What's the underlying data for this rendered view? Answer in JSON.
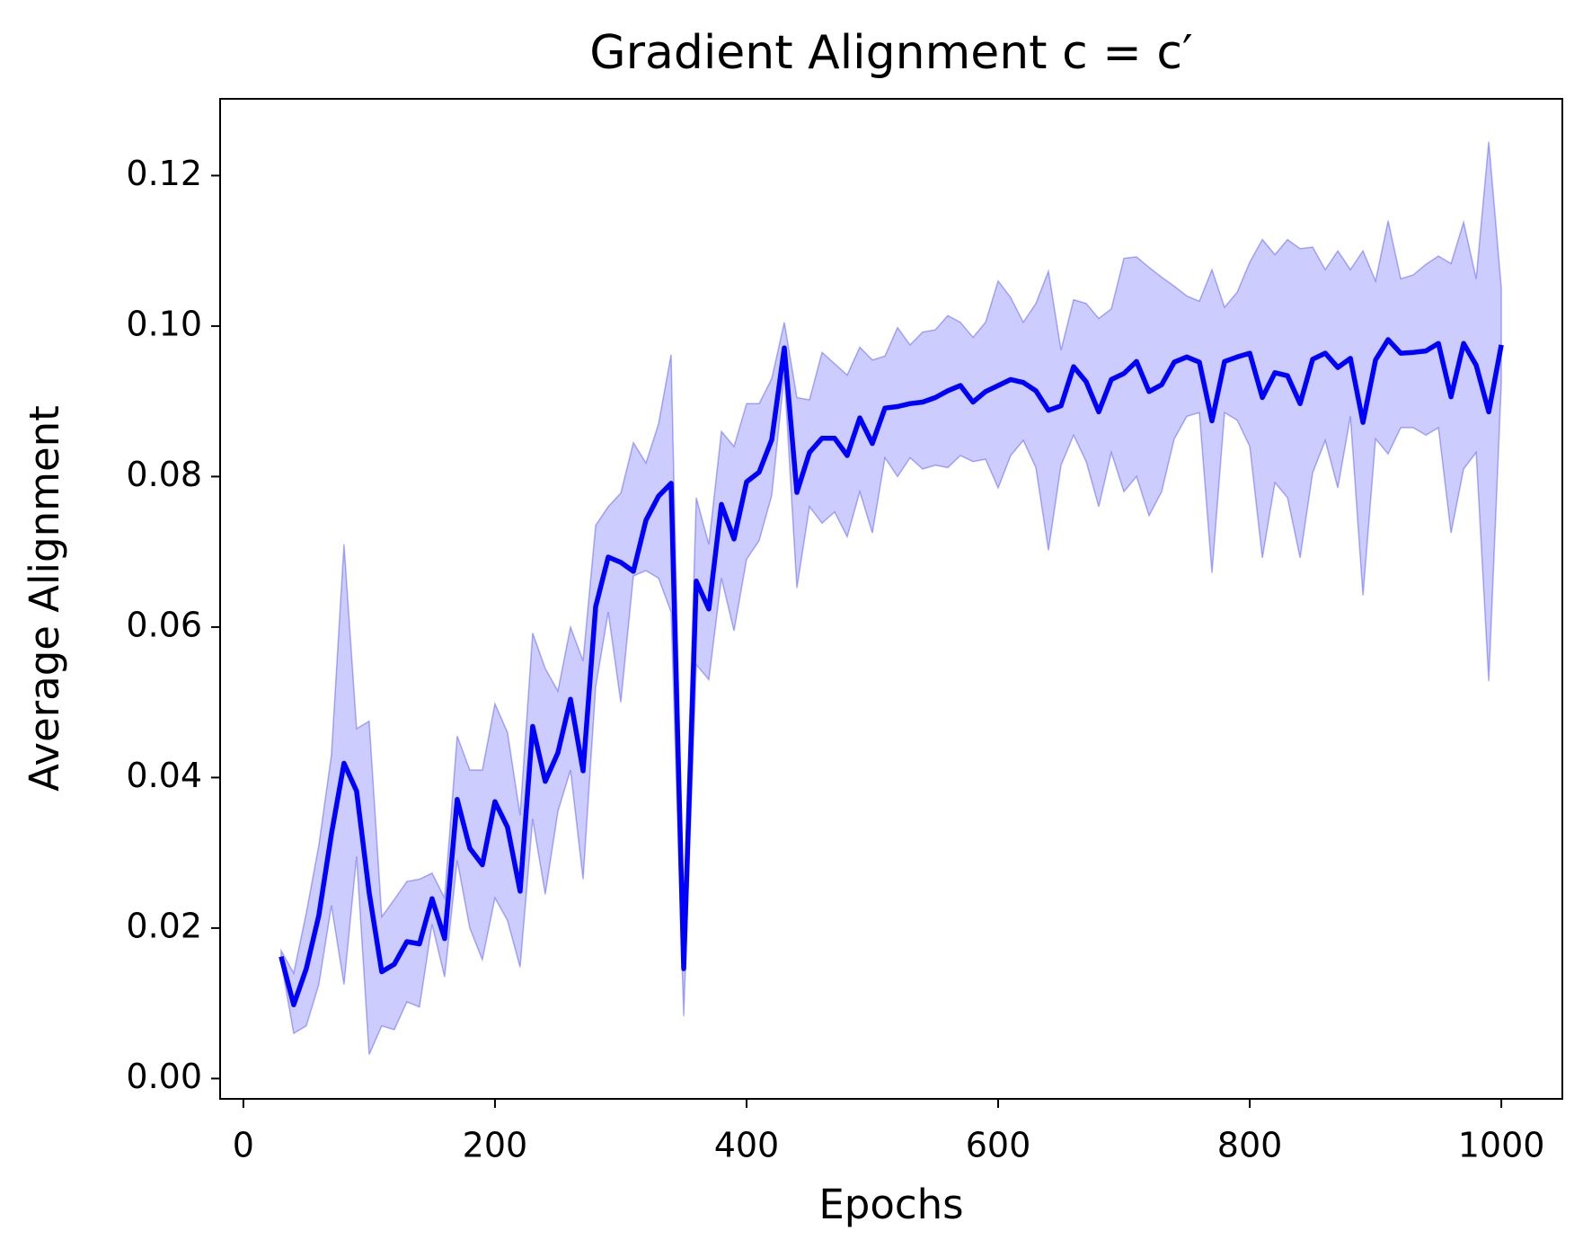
{
  "chart_data": {
    "type": "line",
    "title": "Gradient Alignment c = c′",
    "xlabel": "Epochs",
    "ylabel": "Average Alignment",
    "x": [
      30,
      40,
      50,
      60,
      70,
      80,
      90,
      100,
      110,
      120,
      130,
      140,
      150,
      160,
      170,
      180,
      190,
      200,
      210,
      220,
      230,
      240,
      250,
      260,
      270,
      280,
      290,
      300,
      310,
      320,
      330,
      340,
      350,
      360,
      370,
      380,
      390,
      400,
      410,
      420,
      430,
      440,
      450,
      460,
      470,
      480,
      490,
      500,
      510,
      520,
      530,
      540,
      550,
      560,
      570,
      580,
      590,
      600,
      610,
      620,
      630,
      640,
      650,
      660,
      670,
      680,
      690,
      700,
      710,
      720,
      730,
      740,
      750,
      760,
      770,
      780,
      790,
      800,
      810,
      820,
      830,
      840,
      850,
      860,
      870,
      880,
      890,
      900,
      910,
      920,
      930,
      940,
      950,
      960,
      970,
      980,
      990,
      1000
    ],
    "series": [
      {
        "color": "#0000ff",
        "values": [
          0.0162,
          0.0098,
          0.0146,
          0.0217,
          0.0325,
          0.0419,
          0.0382,
          0.0247,
          0.0142,
          0.0152,
          0.0182,
          0.0179,
          0.0239,
          0.0186,
          0.0371,
          0.0306,
          0.0284,
          0.0368,
          0.0334,
          0.0249,
          0.0468,
          0.0395,
          0.0433,
          0.0504,
          0.0409,
          0.0627,
          0.0693,
          0.0686,
          0.0674,
          0.0742,
          0.0774,
          0.0791,
          0.0146,
          0.0661,
          0.0624,
          0.0763,
          0.0717,
          0.0793,
          0.0806,
          0.0849,
          0.0971,
          0.0779,
          0.0832,
          0.0851,
          0.0851,
          0.0828,
          0.0878,
          0.0844,
          0.0891,
          0.0893,
          0.0897,
          0.0899,
          0.0905,
          0.0914,
          0.0921,
          0.0899,
          0.0913,
          0.0921,
          0.0929,
          0.0925,
          0.0914,
          0.0888,
          0.0894,
          0.0946,
          0.0926,
          0.0886,
          0.0929,
          0.0937,
          0.0953,
          0.0913,
          0.0922,
          0.0952,
          0.0959,
          0.0952,
          0.0874,
          0.0953,
          0.0959,
          0.0964,
          0.0905,
          0.0938,
          0.0934,
          0.0897,
          0.0956,
          0.0964,
          0.0945,
          0.0957,
          0.0872,
          0.0955,
          0.0982,
          0.0964,
          0.0965,
          0.0967,
          0.0977,
          0.0906,
          0.0977,
          0.0948,
          0.0886,
          0.0975
        ]
      }
    ],
    "band": {
      "color": "#0000ff",
      "opacity": 0.2,
      "upper": [
        0.017,
        0.014,
        0.022,
        0.031,
        0.043,
        0.071,
        0.0465,
        0.0475,
        0.0215,
        0.0238,
        0.0262,
        0.0265,
        0.0273,
        0.024,
        0.0455,
        0.041,
        0.041,
        0.0498,
        0.046,
        0.035,
        0.0592,
        0.0545,
        0.0515,
        0.06,
        0.0555,
        0.0735,
        0.076,
        0.0778,
        0.0845,
        0.0818,
        0.087,
        0.0962,
        0.021,
        0.0772,
        0.071,
        0.086,
        0.084,
        0.0897,
        0.0897,
        0.093,
        0.1005,
        0.0905,
        0.0902,
        0.0965,
        0.095,
        0.0935,
        0.0972,
        0.0955,
        0.096,
        0.0998,
        0.0975,
        0.0992,
        0.0995,
        0.1014,
        0.1005,
        0.0985,
        0.1005,
        0.106,
        0.1038,
        0.1005,
        0.103,
        0.1073,
        0.0968,
        0.1035,
        0.103,
        0.101,
        0.1023,
        0.109,
        0.1092,
        0.1078,
        0.1065,
        0.1053,
        0.104,
        0.1033,
        0.1075,
        0.1025,
        0.1045,
        0.1085,
        0.1115,
        0.1095,
        0.1115,
        0.1103,
        0.1105,
        0.1075,
        0.11,
        0.1075,
        0.11,
        0.106,
        0.114,
        0.1063,
        0.1068,
        0.1082,
        0.1093,
        0.1083,
        0.1138,
        0.1063,
        0.1245,
        0.105
      ],
      "lower": [
        0.0155,
        0.006,
        0.007,
        0.0125,
        0.023,
        0.0125,
        0.0295,
        0.0032,
        0.007,
        0.0065,
        0.0102,
        0.0095,
        0.0205,
        0.0135,
        0.029,
        0.02,
        0.0158,
        0.024,
        0.021,
        0.0148,
        0.0345,
        0.0245,
        0.0355,
        0.041,
        0.0265,
        0.052,
        0.062,
        0.05,
        0.0668,
        0.0675,
        0.0665,
        0.062,
        0.0083,
        0.055,
        0.053,
        0.0665,
        0.0595,
        0.069,
        0.0715,
        0.0775,
        0.0935,
        0.0652,
        0.076,
        0.0738,
        0.0753,
        0.072,
        0.078,
        0.0725,
        0.0825,
        0.08,
        0.0825,
        0.081,
        0.0815,
        0.0812,
        0.0828,
        0.082,
        0.0823,
        0.0785,
        0.0828,
        0.0848,
        0.0812,
        0.0702,
        0.0815,
        0.0855,
        0.082,
        0.076,
        0.0832,
        0.078,
        0.08,
        0.0748,
        0.078,
        0.085,
        0.088,
        0.0885,
        0.0672,
        0.0885,
        0.0875,
        0.084,
        0.0692,
        0.0792,
        0.0772,
        0.0692,
        0.0805,
        0.0848,
        0.0785,
        0.088,
        0.0642,
        0.085,
        0.083,
        0.0865,
        0.0865,
        0.0855,
        0.0865,
        0.0725,
        0.081,
        0.0832,
        0.0528,
        0.0925
      ]
    },
    "xlim": [
      -18.5,
      1048.5
    ],
    "ylim": [
      -0.0027,
      0.1302
    ],
    "xticks": [
      0,
      200,
      400,
      600,
      800,
      1000
    ],
    "yticks": [
      {
        "value": 0,
        "label": "0.00"
      },
      0.02,
      0.04,
      0.06,
      0.08,
      {
        "value": 0.1,
        "label": "0.10"
      },
      0.12
    ],
    "grid": false
  }
}
